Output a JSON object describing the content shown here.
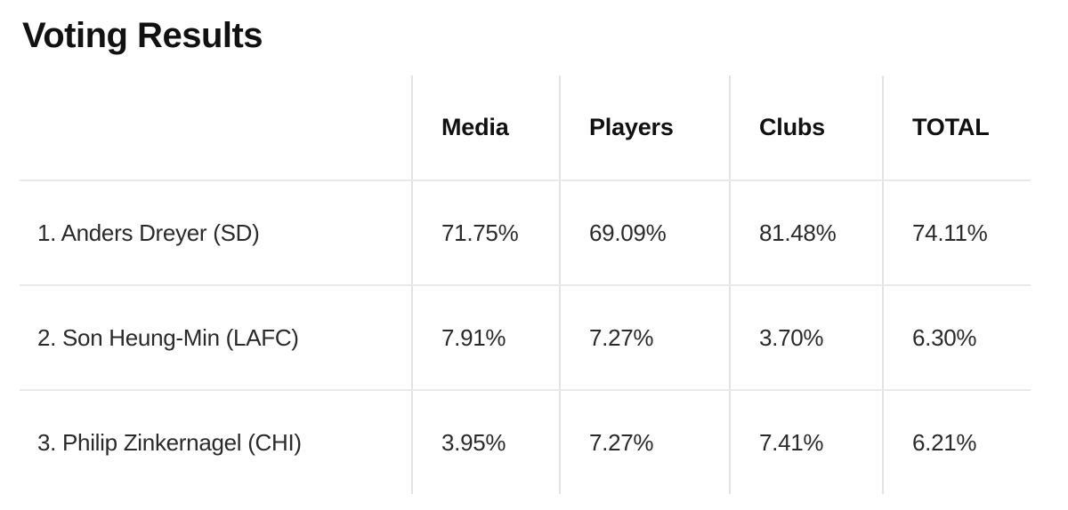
{
  "page": {
    "title": "Voting Results"
  },
  "table": {
    "columns": [
      "Media",
      "Players",
      "Clubs",
      "TOTAL"
    ],
    "rows": [
      {
        "label": "1. Anders Dreyer (SD)",
        "values": [
          "71.75%",
          "69.09%",
          "81.48%",
          "74.11%"
        ]
      },
      {
        "label": "2. Son Heung-Min (LAFC)",
        "values": [
          "7.91%",
          "7.27%",
          "3.70%",
          "6.30%"
        ]
      },
      {
        "label": "3. Philip Zinkernagel (CHI)",
        "values": [
          "3.95%",
          "7.27%",
          "7.41%",
          "6.21%"
        ]
      }
    ]
  },
  "colors": {
    "heading_text": "#111111",
    "body_text": "#2a2a2a",
    "divider": "#e6e6e6",
    "background": "#ffffff"
  }
}
